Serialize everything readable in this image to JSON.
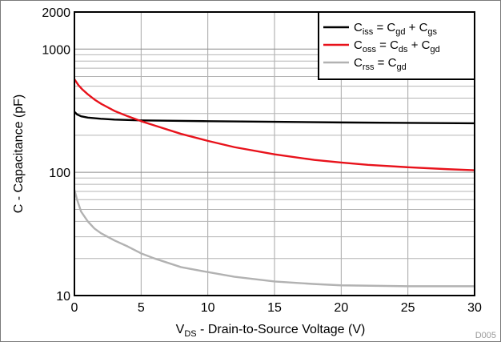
{
  "chart_data": {
    "type": "line",
    "xlabel": {
      "main": "V",
      "sub": "DS",
      "rest": " - Drain-to-Source Voltage (V)"
    },
    "ylabel": "C - Capacitance (pF)",
    "xlim": [
      0,
      30
    ],
    "ylim": [
      10,
      2000
    ],
    "yscale": "log",
    "x_ticks": [
      0,
      5,
      10,
      15,
      20,
      25,
      30
    ],
    "y_ticks": [
      {
        "value": 10,
        "label": "10"
      },
      {
        "value": 100,
        "label": "100"
      },
      {
        "value": 1000,
        "label": "1000"
      },
      {
        "value": 2000,
        "label": "2000"
      }
    ],
    "grid": true,
    "legend_position": "top-right",
    "corner_label": "D005",
    "series": [
      {
        "legend": [
          [
            "C",
            ""
          ],
          [
            "iss",
            "sub"
          ],
          [
            " = C",
            ""
          ],
          [
            "gd",
            "sub"
          ],
          [
            " + C",
            ""
          ],
          [
            "gs",
            "sub"
          ]
        ],
        "color": "#000000",
        "x": [
          0,
          0.2,
          0.5,
          1,
          2,
          3,
          5,
          10,
          15,
          20,
          25,
          30
        ],
        "y": [
          310,
          295,
          285,
          278,
          272,
          268,
          264,
          260,
          257,
          254,
          252,
          250
        ]
      },
      {
        "legend": [
          [
            "C",
            ""
          ],
          [
            "oss",
            "sub"
          ],
          [
            " = C",
            ""
          ],
          [
            "ds",
            "sub"
          ],
          [
            " + C",
            ""
          ],
          [
            "gd",
            "sub"
          ]
        ],
        "color": "#e8121b",
        "x": [
          0,
          0.3,
          0.6,
          1,
          1.5,
          2,
          3,
          4,
          5,
          6,
          8,
          10,
          12,
          15,
          18,
          20,
          22,
          25,
          28,
          30
        ],
        "y": [
          570,
          510,
          470,
          430,
          390,
          360,
          315,
          285,
          260,
          240,
          205,
          180,
          160,
          140,
          126,
          120,
          115,
          110,
          106,
          104
        ]
      },
      {
        "legend": [
          [
            "C",
            ""
          ],
          [
            "rss",
            "sub"
          ],
          [
            " = C",
            ""
          ],
          [
            "gd",
            "sub"
          ]
        ],
        "color": "#b2b2b2",
        "x": [
          0,
          0.2,
          0.5,
          1,
          1.5,
          2,
          3,
          4,
          5,
          6,
          8,
          10,
          12,
          15,
          18,
          20,
          25,
          30
        ],
        "y": [
          72,
          60,
          48,
          40,
          35,
          32,
          28,
          25,
          22,
          20,
          17,
          15.5,
          14.2,
          13,
          12.4,
          12.1,
          11.9,
          11.9
        ]
      }
    ]
  }
}
